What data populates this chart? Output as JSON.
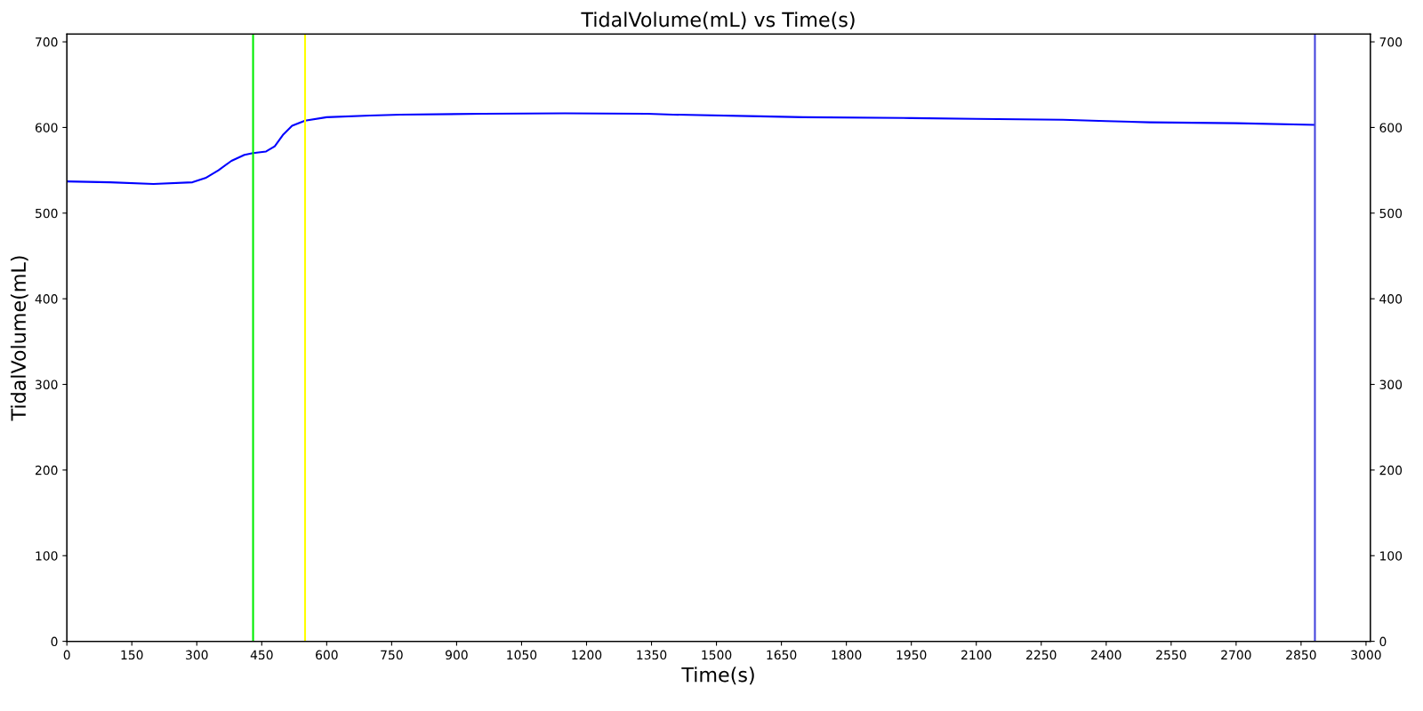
{
  "chart_data": {
    "type": "line",
    "title": "TidalVolume(mL) vs Time(s)",
    "xlabel": "Time(s)",
    "ylabel": "TidalVolume(mL)",
    "x": [
      0,
      100,
      200,
      290,
      320,
      350,
      380,
      410,
      430,
      460,
      480,
      500,
      520,
      550,
      600,
      700,
      770,
      960,
      1150,
      1340,
      1400,
      1600,
      1700,
      1950,
      2100,
      2300,
      2400,
      2500,
      2700,
      2880
    ],
    "series": [
      {
        "color": "#0000ff",
        "values": [
          537,
          536,
          534,
          536,
          541,
          550,
          561,
          568,
          570,
          572,
          578,
          592,
          602,
          608,
          612,
          614,
          615,
          616,
          616.5,
          616,
          615,
          613,
          612,
          611,
          610,
          609,
          607.5,
          606,
          605,
          603
        ]
      }
    ],
    "xlim": [
      0,
      3010
    ],
    "xticks": [
      0,
      150,
      300,
      450,
      600,
      750,
      900,
      1050,
      1200,
      1350,
      1500,
      1650,
      1800,
      1950,
      2100,
      2250,
      2400,
      2550,
      2700,
      2850,
      3000
    ],
    "ylim": [
      0,
      709
    ],
    "yticks": [
      0,
      100,
      200,
      300,
      400,
      500,
      600,
      700
    ],
    "y2lim": [
      0,
      709
    ],
    "y2ticks": [
      0,
      100,
      200,
      300,
      400,
      500,
      600,
      700
    ],
    "ref_lines": [
      {
        "axis": "x",
        "value": 430,
        "color": "#00ee00"
      },
      {
        "axis": "x",
        "value": 550,
        "color": "#ffff00"
      },
      {
        "axis": "x",
        "value": 2882,
        "color": "#4444dd"
      }
    ],
    "grid": false,
    "legend": false,
    "marker": "none",
    "line_style": "solid"
  }
}
